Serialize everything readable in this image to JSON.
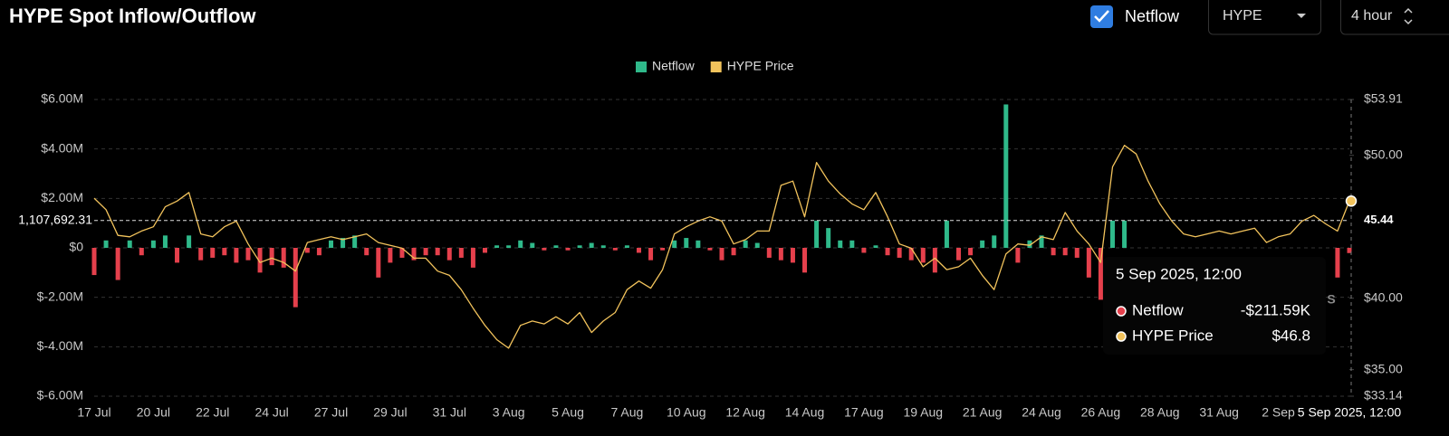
{
  "header": {
    "title": "HYPE Spot Inflow/Outflow",
    "checkbox_label": "Netflow",
    "asset": "HYPE",
    "interval": "4 hour"
  },
  "chart_data": {
    "type": "combo",
    "categories": [
      "17 Jul",
      null,
      null,
      null,
      null,
      "20 Jul",
      null,
      null,
      null,
      null,
      "22 Jul",
      null,
      null,
      null,
      null,
      "24 Jul",
      null,
      null,
      null,
      null,
      "27 Jul",
      null,
      null,
      null,
      null,
      "29 Jul",
      null,
      null,
      null,
      null,
      "31 Jul",
      null,
      null,
      null,
      null,
      "3 Aug",
      null,
      null,
      null,
      null,
      "5 Aug",
      null,
      null,
      null,
      null,
      "7 Aug",
      null,
      null,
      null,
      null,
      "10 Aug",
      null,
      null,
      null,
      null,
      "12 Aug",
      null,
      null,
      null,
      null,
      "14 Aug",
      null,
      null,
      null,
      null,
      "17 Aug",
      null,
      null,
      null,
      null,
      "19 Aug",
      null,
      null,
      null,
      null,
      "21 Aug",
      null,
      null,
      null,
      null,
      "24 Aug",
      null,
      null,
      null,
      null,
      "26 Aug",
      null,
      null,
      null,
      null,
      "28 Aug",
      null,
      null,
      null,
      null,
      "31 Aug",
      null,
      null,
      null,
      null,
      "2 Sep",
      null,
      null,
      null,
      null,
      null,
      "5 Sep 2025, 12:00"
    ],
    "series": [
      {
        "name": "Netflow",
        "type": "bar",
        "color": "#2fb98a",
        "negative_color": "#e5404c",
        "values": [
          -1100000,
          300000,
          -1300000,
          300000,
          -300000,
          300000,
          500000,
          -600000,
          500000,
          -500000,
          -400000,
          -300000,
          -600000,
          -500000,
          -1000000,
          -700000,
          -800000,
          -2400000,
          -200000,
          -300000,
          300000,
          400000,
          500000,
          -300000,
          -1200000,
          -600000,
          -400000,
          -500000,
          -300000,
          -300000,
          -500000,
          -400000,
          -800000,
          -200000,
          100000,
          100000,
          300000,
          200000,
          -100000,
          100000,
          -100000,
          100000,
          200000,
          100000,
          -100000,
          100000,
          -200000,
          -500000,
          -100000,
          300000,
          400000,
          300000,
          -100000,
          -500000,
          -300000,
          300000,
          200000,
          -400000,
          -500000,
          -600000,
          -1000000,
          1100000,
          800000,
          300000,
          300000,
          -200000,
          100000,
          -300000,
          -400000,
          -500000,
          -600000,
          -1000000,
          1100000,
          -500000,
          -300000,
          300000,
          500000,
          5800000,
          -600000,
          300000,
          500000,
          -300000,
          -300000,
          -400000,
          -1200000,
          -2100000,
          1100000,
          1100000,
          null,
          null,
          null,
          null,
          null,
          null,
          null,
          null,
          null,
          null,
          null,
          null,
          null,
          null,
          null,
          null,
          null,
          -1200000,
          -211590
        ]
      },
      {
        "name": "HYPE Price",
        "type": "line",
        "color": "#f2c35c",
        "axis": "y2",
        "values": [
          47.0,
          46.2,
          44.4,
          44.3,
          44.7,
          45.0,
          46.4,
          46.8,
          47.4,
          44.5,
          44.3,
          45.0,
          45.4,
          43.8,
          42.5,
          42.8,
          42.5,
          41.9,
          43.9,
          44.1,
          44.3,
          44.1,
          44.3,
          44.5,
          43.9,
          43.7,
          43.5,
          42.8,
          42.8,
          41.9,
          41.6,
          40.6,
          39.3,
          38.1,
          37.1,
          36.5,
          38.1,
          38.4,
          38.2,
          38.7,
          38.2,
          39.0,
          37.6,
          38.4,
          39.0,
          40.6,
          41.2,
          40.7,
          42.0,
          44.5,
          45.0,
          45.4,
          45.7,
          45.4,
          43.8,
          44.1,
          44.7,
          44.7,
          47.9,
          48.2,
          45.7,
          49.5,
          48.2,
          47.3,
          46.6,
          46.2,
          47.4,
          45.7,
          43.8,
          43.5,
          42.2,
          42.8,
          42.0,
          42.2,
          42.8,
          41.6,
          40.6,
          43.1,
          43.8,
          43.7,
          44.3,
          44.1,
          46.0,
          44.7,
          43.8,
          42.5,
          49.2,
          50.7,
          50.1,
          48.2,
          46.6,
          45.4,
          44.5,
          44.3,
          44.5,
          44.7,
          44.5,
          44.7,
          44.9,
          43.9,
          44.3,
          44.5,
          45.4,
          45.8,
          45.2,
          44.7,
          46.8
        ]
      }
    ],
    "ylim": [
      -6000000,
      6000000
    ],
    "yticks": [
      {
        "value": -6000000,
        "label": "$-6.00M"
      },
      {
        "value": -4000000,
        "label": "$-4.00M"
      },
      {
        "value": -2000000,
        "label": "$-2.00M"
      },
      {
        "value": 0,
        "label": "$0"
      },
      {
        "value": 2000000,
        "label": "$2.00M"
      },
      {
        "value": 4000000,
        "label": "$4.00M"
      },
      {
        "value": 6000000,
        "label": "$6.00M"
      }
    ],
    "y2lim": [
      33.14,
      53.91
    ],
    "y2ticks": [
      {
        "value": 33.14,
        "label": "$33.14"
      },
      {
        "value": 35,
        "label": "$35.00"
      },
      {
        "value": 40,
        "label": "$40.00"
      },
      {
        "value": 50,
        "label": "$50.00"
      },
      {
        "value": 53.91,
        "label": "$53.91"
      }
    ],
    "grid": true,
    "legend": "top",
    "crosshair": {
      "index": 106,
      "y": {
        "value": 1107692.31,
        "label": "1,107,692.31"
      },
      "y2": 45.44
    },
    "tooltip": {
      "labels": [
        "-$211.59K",
        "$46.8"
      ]
    },
    "badge": "S"
  }
}
